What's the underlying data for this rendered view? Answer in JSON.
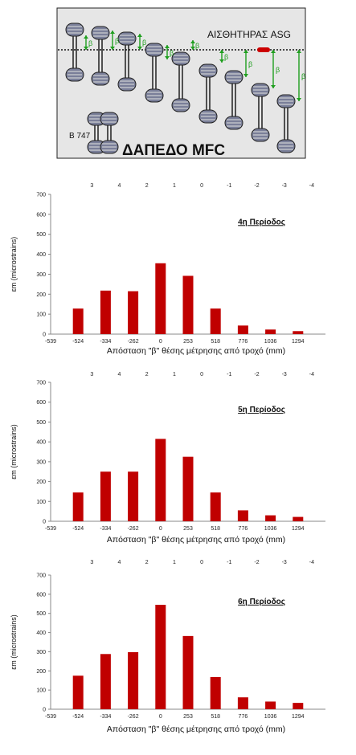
{
  "diagram": {
    "sensor_label": "ΑΙΣΘΗΤΗΡΑΣ ASG",
    "aircraft_label": "B 747",
    "floor_label": "ΔΑΠΕΔΟ MFC",
    "beta_symbol": "β",
    "colors": {
      "background": "#e6e6e6",
      "wheel": "#7a7f99",
      "arrow": "#1e9e1e",
      "sensor": "#cc0000"
    }
  },
  "chart_data": [
    {
      "type": "bar",
      "title": "4η Περίοδος",
      "x_ticks": [
        "-539",
        "-524",
        "-334",
        "-262",
        "0",
        "253",
        "518",
        "776",
        "1036",
        "1294"
      ],
      "top_ticks": [
        "3",
        "4",
        "2",
        "1",
        "0",
        "-1",
        "-2",
        "-3",
        "-4"
      ],
      "categories": [
        "-524",
        "-334",
        "-262",
        "0",
        "253",
        "518",
        "776",
        "1036",
        "1294"
      ],
      "values": [
        128,
        218,
        215,
        355,
        292,
        128,
        43,
        23,
        15
      ],
      "xlabel": "Απόσταση \"β\" θέσης μέτρησης από τροχό (mm)",
      "ylabel": "εm (microstrains)",
      "ylim": [
        0,
        700
      ],
      "y_ticks": [
        0,
        100,
        200,
        300,
        400,
        500,
        600,
        700
      ],
      "grid": false,
      "bar_color": "#c00000"
    },
    {
      "type": "bar",
      "title": "5η Περίοδος",
      "x_ticks": [
        "-539",
        "-524",
        "-334",
        "-262",
        "0",
        "253",
        "518",
        "776",
        "1036",
        "1294"
      ],
      "top_ticks": [
        "3",
        "4",
        "2",
        "1",
        "0",
        "-1",
        "-2",
        "-3",
        "-4"
      ],
      "categories": [
        "-524",
        "-334",
        "-262",
        "0",
        "253",
        "518",
        "776",
        "1036",
        "1294"
      ],
      "values": [
        145,
        250,
        250,
        415,
        325,
        145,
        55,
        30,
        22
      ],
      "xlabel": "Απόσταση \"β\" θέσης μέτρησης από τροχό (mm)",
      "ylabel": "εm (microstrains)",
      "ylim": [
        0,
        700
      ],
      "y_ticks": [
        0,
        100,
        200,
        300,
        400,
        500,
        600,
        700
      ],
      "grid": false,
      "bar_color": "#c00000"
    },
    {
      "type": "bar",
      "title": "6η Περίοδος",
      "x_ticks": [
        "-539",
        "-524",
        "-334",
        "-262",
        "0",
        "253",
        "518",
        "776",
        "1036",
        "1294"
      ],
      "top_ticks": [
        "3",
        "4",
        "2",
        "1",
        "0",
        "-1",
        "-2",
        "-3",
        "-4"
      ],
      "categories": [
        "-524",
        "-334",
        "-262",
        "0",
        "253",
        "518",
        "776",
        "1036",
        "1294"
      ],
      "values": [
        175,
        288,
        298,
        545,
        382,
        168,
        62,
        40,
        33
      ],
      "xlabel": "Απόσταση \"β\" θέσης μέτρησης από τροχό (mm)",
      "ylabel": "εm (microstrains)",
      "ylim": [
        0,
        700
      ],
      "y_ticks": [
        0,
        100,
        200,
        300,
        400,
        500,
        600,
        700
      ],
      "grid": false,
      "bar_color": "#c00000"
    }
  ]
}
